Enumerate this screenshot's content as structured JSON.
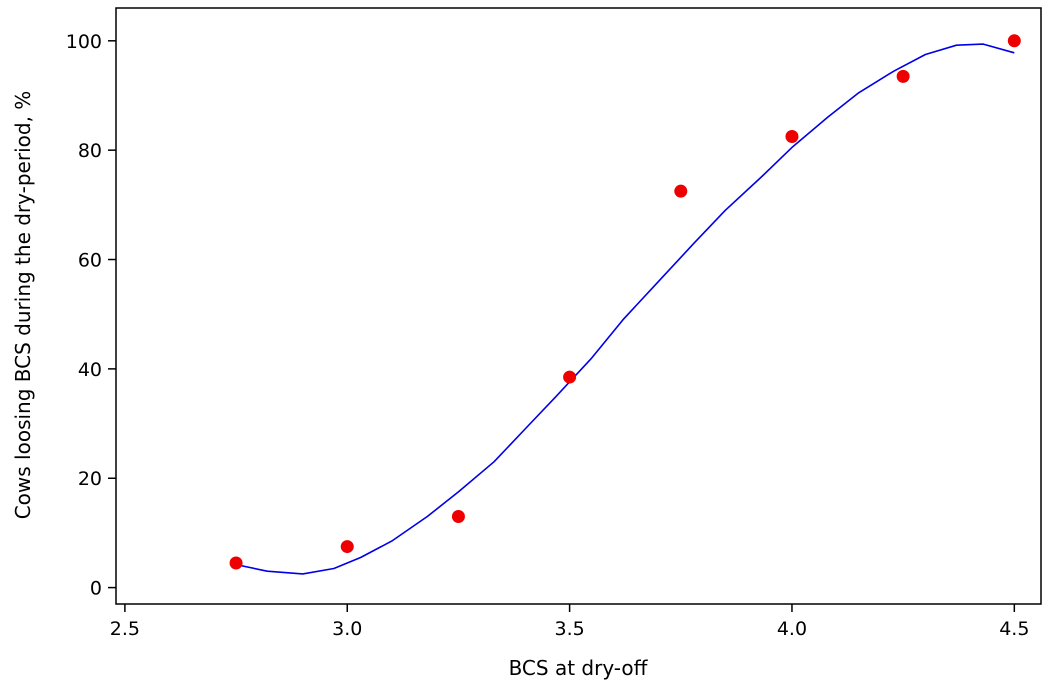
{
  "chart_data": {
    "type": "scatter",
    "title": "",
    "xlabel": "BCS at dry-off",
    "ylabel": "Cows loosing BCS during the dry-period, %",
    "xlim": [
      2.48,
      4.56
    ],
    "ylim": [
      -3,
      106
    ],
    "x_ticks": [
      2.5,
      3.0,
      3.5,
      4.0,
      4.5
    ],
    "x_tick_labels": [
      "2.5",
      "3.0",
      "3.5",
      "4.0",
      "4.5"
    ],
    "y_ticks": [
      0,
      20,
      40,
      60,
      80,
      100
    ],
    "y_tick_labels": [
      "0",
      "20",
      "40",
      "60",
      "80",
      "100"
    ],
    "grid": false,
    "series": [
      {
        "kind": "points",
        "color": "#ee0000",
        "x": [
          2.75,
          3.0,
          3.25,
          3.5,
          3.75,
          4.0,
          4.25,
          4.5
        ],
        "y": [
          4.5,
          7.5,
          13,
          38.5,
          72.5,
          82.5,
          93.5,
          100
        ]
      },
      {
        "kind": "fitted-line",
        "color": "#0000e6",
        "x": [
          2.75,
          2.82,
          2.9,
          2.97,
          3.03,
          3.1,
          3.18,
          3.25,
          3.33,
          3.4,
          3.47,
          3.55,
          3.62,
          3.7,
          3.78,
          3.85,
          3.93,
          4.0,
          4.08,
          4.15,
          4.23,
          4.3,
          4.37,
          4.43,
          4.5
        ],
        "y": [
          4.2,
          3.0,
          2.5,
          3.5,
          5.5,
          8.5,
          13,
          17.5,
          23,
          29,
          35,
          42,
          49,
          56,
          63,
          69,
          75,
          80.5,
          86,
          90.5,
          94.5,
          97.5,
          99.2,
          99.4,
          97.8
        ]
      }
    ]
  }
}
